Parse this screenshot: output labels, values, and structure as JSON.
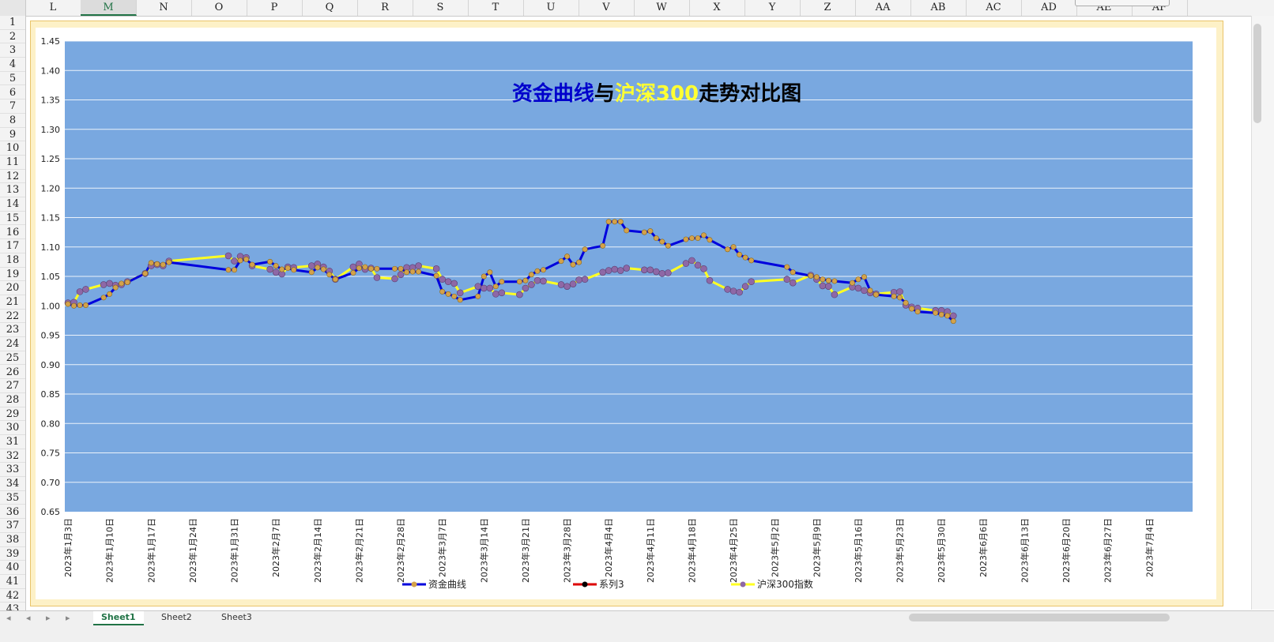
{
  "spreadsheet": {
    "columns": [
      "L",
      "M",
      "N",
      "O",
      "P",
      "Q",
      "R",
      "S",
      "T",
      "U",
      "V",
      "W",
      "X",
      "Y",
      "Z",
      "AA",
      "AB",
      "AC",
      "AD",
      "AE",
      "AF"
    ],
    "active_column": "M",
    "rows": [
      "1",
      "2",
      "3",
      "4",
      "5",
      "6",
      "7",
      "8",
      "9",
      "10",
      "11",
      "12",
      "13",
      "14",
      "15",
      "16",
      "17",
      "18",
      "19",
      "20",
      "21",
      "22",
      "23",
      "24",
      "25",
      "26",
      "27",
      "28",
      "29",
      "30",
      "31",
      "32",
      "33",
      "34",
      "35",
      "36",
      "37",
      "38",
      "39",
      "40",
      "41",
      "42",
      "43"
    ],
    "sheet_tabs": [
      "Sheet1",
      "Sheet2",
      "Sheet3"
    ],
    "active_tab": 0
  },
  "colors": {
    "plot_bg": "#79A8E0",
    "fund_line": "#0000DD",
    "index_line": "#FFFF22",
    "series3_line": "#DD0000",
    "fund_marker": "#D4A24A",
    "index_marker": "#8E68A6",
    "title_blue": "#0000CC",
    "title_yellow": "#FFFF33",
    "title_black": "#000000"
  },
  "chart_data": {
    "type": "line",
    "title_parts": [
      {
        "text": "资金曲线",
        "color": "#0000CC"
      },
      {
        "text": "与",
        "color": "#000000"
      },
      {
        "text": "沪深300",
        "color": "#FFFF33"
      },
      {
        "text": "走势对比图",
        "color": "#000000"
      }
    ],
    "ylim": [
      0.65,
      1.45
    ],
    "yticks": [
      "0.65",
      "0.70",
      "0.75",
      "0.80",
      "0.85",
      "0.90",
      "0.95",
      "1.00",
      "1.05",
      "1.10",
      "1.15",
      "1.20",
      "1.25",
      "1.30",
      "1.35",
      "1.40",
      "1.45"
    ],
    "xrange": [
      "2023-01-03",
      "2023-07-11"
    ],
    "xticks": [
      "2023年1月3日",
      "2023年1月10日",
      "2023年1月17日",
      "2023年1月24日",
      "2023年1月31日",
      "2023年2月7日",
      "2023年2月14日",
      "2023年2月21日",
      "2023年2月28日",
      "2023年3月7日",
      "2023年3月14日",
      "2023年3月21日",
      "2023年3月28日",
      "2023年4月4日",
      "2023年4月11日",
      "2023年4月18日",
      "2023年4月25日",
      "2023年5月2日",
      "2023年5月9日",
      "2023年5月16日",
      "2023年5月23日",
      "2023年5月30日",
      "2023年6月6日",
      "2023年6月13日",
      "2023年6月20日",
      "2023年6月27日",
      "2023年7月4日"
    ],
    "grid": true,
    "legend_position": "bottom",
    "series": [
      {
        "name": "资金曲线",
        "points": [
          [
            "2023-01-03",
            1.003
          ],
          [
            "2023-01-04",
            1.0
          ],
          [
            "2023-01-05",
            1.001
          ],
          [
            "2023-01-06",
            1.001
          ],
          [
            "2023-01-09",
            1.014
          ],
          [
            "2023-01-10",
            1.02
          ],
          [
            "2023-01-11",
            1.031
          ],
          [
            "2023-01-12",
            1.038
          ],
          [
            "2023-01-13",
            1.04
          ],
          [
            "2023-01-16",
            1.055
          ],
          [
            "2023-01-17",
            1.073
          ],
          [
            "2023-01-18",
            1.071
          ],
          [
            "2023-01-19",
            1.07
          ],
          [
            "2023-01-20",
            1.074
          ],
          [
            "2023-01-30",
            1.061
          ],
          [
            "2023-01-31",
            1.061
          ],
          [
            "2023-02-01",
            1.077
          ],
          [
            "2023-02-02",
            1.079
          ],
          [
            "2023-02-03",
            1.07
          ],
          [
            "2023-02-06",
            1.075
          ],
          [
            "2023-02-07",
            1.068
          ],
          [
            "2023-02-08",
            1.062
          ],
          [
            "2023-02-09",
            1.064
          ],
          [
            "2023-02-10",
            1.061
          ],
          [
            "2023-02-13",
            1.057
          ],
          [
            "2023-02-14",
            1.065
          ],
          [
            "2023-02-15",
            1.062
          ],
          [
            "2023-02-16",
            1.053
          ],
          [
            "2023-02-17",
            1.045
          ],
          [
            "2023-02-20",
            1.056
          ],
          [
            "2023-02-21",
            1.064
          ],
          [
            "2023-02-22",
            1.066
          ],
          [
            "2023-02-23",
            1.063
          ],
          [
            "2023-02-24",
            1.063
          ],
          [
            "2023-02-27",
            1.063
          ],
          [
            "2023-02-28",
            1.063
          ],
          [
            "2023-03-01",
            1.057
          ],
          [
            "2023-03-02",
            1.058
          ],
          [
            "2023-03-03",
            1.058
          ],
          [
            "2023-03-06",
            1.051
          ],
          [
            "2023-03-07",
            1.024
          ],
          [
            "2023-03-08",
            1.02
          ],
          [
            "2023-03-09",
            1.016
          ],
          [
            "2023-03-10",
            1.01
          ],
          [
            "2023-03-13",
            1.016
          ],
          [
            "2023-03-14",
            1.05
          ],
          [
            "2023-03-15",
            1.057
          ],
          [
            "2023-03-16",
            1.033
          ],
          [
            "2023-03-17",
            1.041
          ],
          [
            "2023-03-20",
            1.041
          ],
          [
            "2023-03-21",
            1.043
          ],
          [
            "2023-03-22",
            1.053
          ],
          [
            "2023-03-23",
            1.059
          ],
          [
            "2023-03-24",
            1.061
          ],
          [
            "2023-03-27",
            1.076
          ],
          [
            "2023-03-28",
            1.084
          ],
          [
            "2023-03-29",
            1.07
          ],
          [
            "2023-03-30",
            1.074
          ],
          [
            "2023-03-31",
            1.096
          ],
          [
            "2023-04-03",
            1.102
          ],
          [
            "2023-04-04",
            1.143
          ],
          [
            "2023-04-05",
            1.143
          ],
          [
            "2023-04-06",
            1.143
          ],
          [
            "2023-04-07",
            1.128
          ],
          [
            "2023-04-10",
            1.125
          ],
          [
            "2023-04-11",
            1.127
          ],
          [
            "2023-04-12",
            1.115
          ],
          [
            "2023-04-13",
            1.109
          ],
          [
            "2023-04-14",
            1.102
          ],
          [
            "2023-04-17",
            1.113
          ],
          [
            "2023-04-18",
            1.115
          ],
          [
            "2023-04-19",
            1.115
          ],
          [
            "2023-04-20",
            1.12
          ],
          [
            "2023-04-21",
            1.112
          ],
          [
            "2023-04-24",
            1.096
          ],
          [
            "2023-04-25",
            1.1
          ],
          [
            "2023-04-26",
            1.087
          ],
          [
            "2023-04-27",
            1.082
          ],
          [
            "2023-04-28",
            1.077
          ],
          [
            "2023-05-04",
            1.066
          ],
          [
            "2023-05-05",
            1.057
          ],
          [
            "2023-05-08",
            1.051
          ],
          [
            "2023-05-09",
            1.049
          ],
          [
            "2023-05-10",
            1.045
          ],
          [
            "2023-05-11",
            1.043
          ],
          [
            "2023-05-12",
            1.042
          ],
          [
            "2023-05-15",
            1.039
          ],
          [
            "2023-05-16",
            1.045
          ],
          [
            "2023-05-17",
            1.049
          ],
          [
            "2023-05-18",
            1.026
          ],
          [
            "2023-05-19",
            1.019
          ],
          [
            "2023-05-22",
            1.016
          ],
          [
            "2023-05-23",
            1.014
          ],
          [
            "2023-05-24",
            1.005
          ],
          [
            "2023-05-25",
            0.995
          ],
          [
            "2023-05-26",
            0.99
          ],
          [
            "2023-05-29",
            0.988
          ],
          [
            "2023-05-30",
            0.985
          ],
          [
            "2023-05-31",
            0.983
          ],
          [
            "2023-06-01",
            0.974
          ]
        ]
      },
      {
        "name": "系列3",
        "points": []
      },
      {
        "name": "沪深300指数",
        "points": [
          [
            "2023-01-03",
            1.005
          ],
          [
            "2023-01-04",
            1.006
          ],
          [
            "2023-01-05",
            1.024
          ],
          [
            "2023-01-06",
            1.028
          ],
          [
            "2023-01-09",
            1.036
          ],
          [
            "2023-01-10",
            1.038
          ],
          [
            "2023-01-11",
            1.035
          ],
          [
            "2023-01-12",
            1.036
          ],
          [
            "2023-01-13",
            1.041
          ],
          [
            "2023-01-16",
            1.055
          ],
          [
            "2023-01-17",
            1.068
          ],
          [
            "2023-01-18",
            1.07
          ],
          [
            "2023-01-19",
            1.068
          ],
          [
            "2023-01-20",
            1.076
          ],
          [
            "2023-01-30",
            1.085
          ],
          [
            "2023-01-31",
            1.076
          ],
          [
            "2023-02-01",
            1.084
          ],
          [
            "2023-02-02",
            1.082
          ],
          [
            "2023-02-03",
            1.068
          ],
          [
            "2023-02-06",
            1.062
          ],
          [
            "2023-02-07",
            1.057
          ],
          [
            "2023-02-08",
            1.054
          ],
          [
            "2023-02-09",
            1.066
          ],
          [
            "2023-02-10",
            1.065
          ],
          [
            "2023-02-13",
            1.068
          ],
          [
            "2023-02-14",
            1.071
          ],
          [
            "2023-02-15",
            1.066
          ],
          [
            "2023-02-16",
            1.059
          ],
          [
            "2023-02-17",
            1.045
          ],
          [
            "2023-02-20",
            1.066
          ],
          [
            "2023-02-21",
            1.071
          ],
          [
            "2023-02-22",
            1.062
          ],
          [
            "2023-02-23",
            1.064
          ],
          [
            "2023-02-24",
            1.048
          ],
          [
            "2023-02-27",
            1.046
          ],
          [
            "2023-02-28",
            1.053
          ],
          [
            "2023-03-01",
            1.065
          ],
          [
            "2023-03-02",
            1.065
          ],
          [
            "2023-03-03",
            1.068
          ],
          [
            "2023-03-06",
            1.063
          ],
          [
            "2023-03-07",
            1.045
          ],
          [
            "2023-03-08",
            1.041
          ],
          [
            "2023-03-09",
            1.038
          ],
          [
            "2023-03-10",
            1.022
          ],
          [
            "2023-03-13",
            1.033
          ],
          [
            "2023-03-14",
            1.03
          ],
          [
            "2023-03-15",
            1.03
          ],
          [
            "2023-03-16",
            1.02
          ],
          [
            "2023-03-17",
            1.022
          ],
          [
            "2023-03-20",
            1.019
          ],
          [
            "2023-03-21",
            1.03
          ],
          [
            "2023-03-22",
            1.036
          ],
          [
            "2023-03-23",
            1.043
          ],
          [
            "2023-03-24",
            1.042
          ],
          [
            "2023-03-27",
            1.036
          ],
          [
            "2023-03-28",
            1.033
          ],
          [
            "2023-03-29",
            1.037
          ],
          [
            "2023-03-30",
            1.044
          ],
          [
            "2023-03-31",
            1.045
          ],
          [
            "2023-04-03",
            1.057
          ],
          [
            "2023-04-04",
            1.06
          ],
          [
            "2023-04-05",
            1.062
          ],
          [
            "2023-04-06",
            1.06
          ],
          [
            "2023-04-07",
            1.064
          ],
          [
            "2023-04-10",
            1.061
          ],
          [
            "2023-04-11",
            1.061
          ],
          [
            "2023-04-12",
            1.058
          ],
          [
            "2023-04-13",
            1.055
          ],
          [
            "2023-04-14",
            1.056
          ],
          [
            "2023-04-17",
            1.072
          ],
          [
            "2023-04-18",
            1.077
          ],
          [
            "2023-04-19",
            1.069
          ],
          [
            "2023-04-20",
            1.063
          ],
          [
            "2023-04-21",
            1.043
          ],
          [
            "2023-04-24",
            1.028
          ],
          [
            "2023-04-25",
            1.025
          ],
          [
            "2023-04-26",
            1.023
          ],
          [
            "2023-04-27",
            1.033
          ],
          [
            "2023-04-28",
            1.041
          ],
          [
            "2023-05-04",
            1.045
          ],
          [
            "2023-05-05",
            1.039
          ],
          [
            "2023-05-08",
            1.052
          ],
          [
            "2023-05-09",
            1.045
          ],
          [
            "2023-05-10",
            1.034
          ],
          [
            "2023-05-11",
            1.033
          ],
          [
            "2023-05-12",
            1.019
          ],
          [
            "2023-05-15",
            1.032
          ],
          [
            "2023-05-16",
            1.03
          ],
          [
            "2023-05-17",
            1.026
          ],
          [
            "2023-05-18",
            1.022
          ],
          [
            "2023-05-19",
            1.02
          ],
          [
            "2023-05-22",
            1.023
          ],
          [
            "2023-05-23",
            1.024
          ],
          [
            "2023-05-24",
            1.001
          ],
          [
            "2023-05-25",
            0.998
          ],
          [
            "2023-05-26",
            0.996
          ],
          [
            "2023-05-29",
            0.992
          ],
          [
            "2023-05-30",
            0.992
          ],
          [
            "2023-05-31",
            0.99
          ],
          [
            "2023-06-01",
            0.983
          ]
        ]
      }
    ]
  }
}
